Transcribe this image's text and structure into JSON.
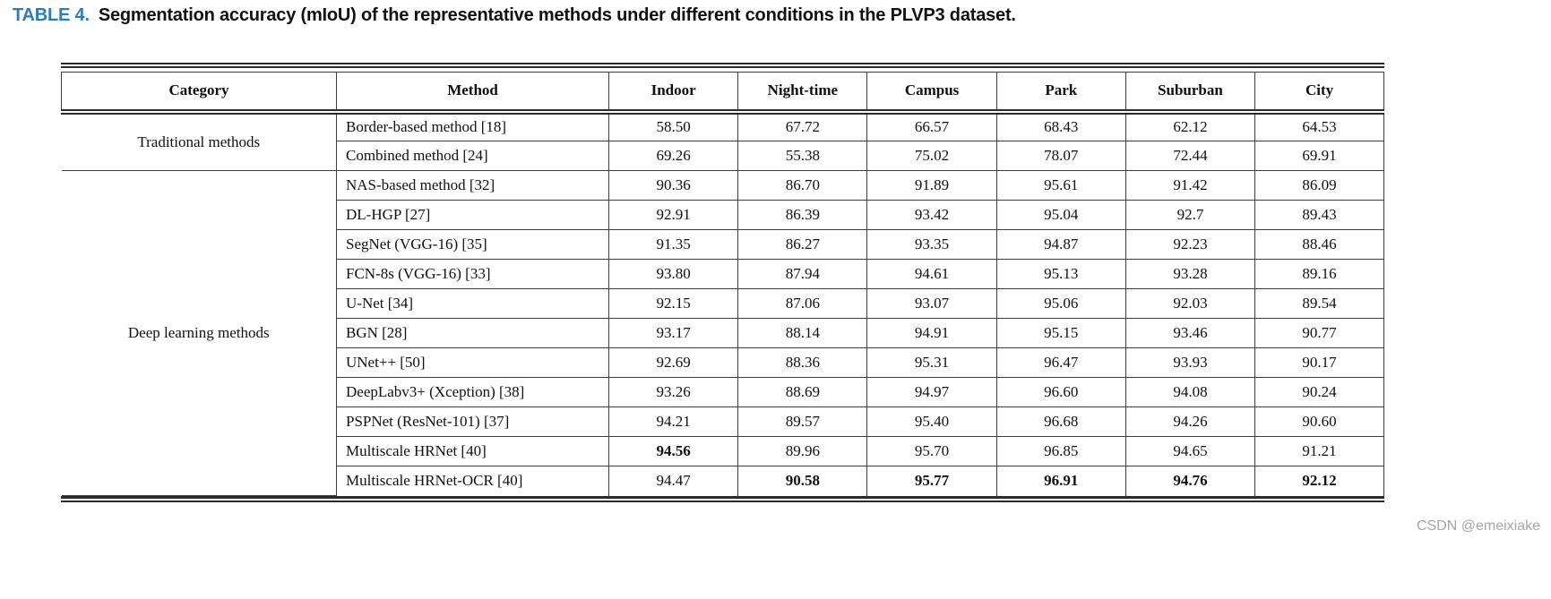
{
  "caption": {
    "label": "TABLE 4.",
    "text": "Segmentation accuracy (mIoU) of the representative methods under different conditions in the PLVP3 dataset."
  },
  "watermark": "CSDN @emeixiake",
  "colors": {
    "caption_label_blue": "#2d7cb5",
    "table_line": "#2b2b2b",
    "watermark_gray": "#a6a6a6"
  },
  "table": {
    "headers": [
      "Category",
      "Method",
      "Indoor",
      "Night-time",
      "Campus",
      "Park",
      "Suburban",
      "City"
    ],
    "groups": [
      {
        "category": "Traditional methods",
        "rows": [
          {
            "method": "Border-based method [18]",
            "values": [
              "58.50",
              "67.72",
              "66.57",
              "68.43",
              "62.12",
              "64.53"
            ],
            "bold": []
          },
          {
            "method": "Combined method [24]",
            "values": [
              "69.26",
              "55.38",
              "75.02",
              "78.07",
              "72.44",
              "69.91"
            ],
            "bold": []
          }
        ]
      },
      {
        "category": "Deep learning methods",
        "rows": [
          {
            "method": "NAS-based method [32]",
            "values": [
              "90.36",
              "86.70",
              "91.89",
              "95.61",
              "91.42",
              "86.09"
            ],
            "bold": []
          },
          {
            "method": "DL-HGP [27]",
            "values": [
              "92.91",
              "86.39",
              "93.42",
              "95.04",
              "92.7",
              "89.43"
            ],
            "bold": []
          },
          {
            "method": "SegNet (VGG-16) [35]",
            "values": [
              "91.35",
              "86.27",
              "93.35",
              "94.87",
              "92.23",
              "88.46"
            ],
            "bold": []
          },
          {
            "method": "FCN-8s (VGG-16) [33]",
            "values": [
              "93.80",
              "87.94",
              "94.61",
              "95.13",
              "93.28",
              "89.16"
            ],
            "bold": []
          },
          {
            "method": "U-Net [34]",
            "values": [
              "92.15",
              "87.06",
              "93.07",
              "95.06",
              "92.03",
              "89.54"
            ],
            "bold": []
          },
          {
            "method": "BGN [28]",
            "values": [
              "93.17",
              "88.14",
              "94.91",
              "95.15",
              "93.46",
              "90.77"
            ],
            "bold": []
          },
          {
            "method": "UNet++ [50]",
            "values": [
              "92.69",
              "88.36",
              "95.31",
              "96.47",
              "93.93",
              "90.17"
            ],
            "bold": []
          },
          {
            "method": "DeepLabv3+ (Xception) [38]",
            "values": [
              "93.26",
              "88.69",
              "94.97",
              "96.60",
              "94.08",
              "90.24"
            ],
            "bold": []
          },
          {
            "method": "PSPNet (ResNet-101) [37]",
            "values": [
              "94.21",
              "89.57",
              "95.40",
              "96.68",
              "94.26",
              "90.60"
            ],
            "bold": []
          },
          {
            "method": "Multiscale HRNet [40]",
            "values": [
              "94.56",
              "89.96",
              "95.70",
              "96.85",
              "94.65",
              "91.21"
            ],
            "bold": [
              0
            ]
          },
          {
            "method": "Multiscale HRNet-OCR [40]",
            "values": [
              "94.47",
              "90.58",
              "95.77",
              "96.91",
              "94.76",
              "92.12"
            ],
            "bold": [
              1,
              2,
              3,
              4,
              5
            ]
          }
        ]
      }
    ]
  }
}
